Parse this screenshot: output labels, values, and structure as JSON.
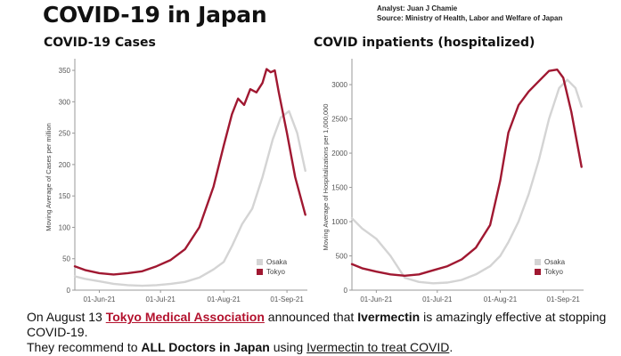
{
  "header": {
    "title": "COVID-19 in Japan",
    "analyst": "Analyst: Juan J Chamie",
    "source": "Source: Ministry of Health, Labor and Welfare of Japan"
  },
  "colors": {
    "osaka": "#d4d4d4",
    "tokyo": "#a01831"
  },
  "caption": {
    "line1_prefix": "On August 13 ",
    "line1_org": "Tokyo Medical Association",
    "line1_mid": " announced that ",
    "line1_drug": "Ivermectin",
    "line1_suffix": " is amazingly effective at stopping COVID-19.",
    "line2_prefix": "They recommend to ",
    "line2_bold": "ALL Doctors in Japan",
    "line2_mid": " using ",
    "line2_link": "Ivermectin to treat COVID",
    "line2_suffix": "."
  },
  "chart_data": [
    {
      "type": "line",
      "title": "COVID-19 Cases",
      "xlabel": "",
      "ylabel": "Moving Average of Cases per million",
      "x_ticks": [
        "01-Jun-21",
        "01-Jul-21",
        "01-Aug-21",
        "01-Sep-21"
      ],
      "y_ticks": [
        0,
        50,
        100,
        150,
        200,
        250,
        300,
        350
      ],
      "ylim": [
        0,
        360
      ],
      "legend": "bottom-right",
      "series": [
        {
          "name": "Osaka",
          "x": [
            "2021-05-20",
            "2021-05-25",
            "2021-06-01",
            "2021-06-08",
            "2021-06-15",
            "2021-06-22",
            "2021-06-29",
            "2021-07-06",
            "2021-07-13",
            "2021-07-20",
            "2021-07-27",
            "2021-08-01",
            "2021-08-05",
            "2021-08-10",
            "2021-08-15",
            "2021-08-20",
            "2021-08-25",
            "2021-08-29",
            "2021-09-02",
            "2021-09-06",
            "2021-09-10"
          ],
          "values": [
            22,
            18,
            14,
            10,
            8,
            7,
            8,
            10,
            13,
            20,
            33,
            45,
            70,
            105,
            130,
            180,
            240,
            275,
            285,
            250,
            190
          ]
        },
        {
          "name": "Tokyo",
          "x": [
            "2021-05-20",
            "2021-05-25",
            "2021-06-01",
            "2021-06-08",
            "2021-06-15",
            "2021-06-22",
            "2021-06-29",
            "2021-07-06",
            "2021-07-13",
            "2021-07-20",
            "2021-07-27",
            "2021-08-01",
            "2021-08-05",
            "2021-08-08",
            "2021-08-11",
            "2021-08-14",
            "2021-08-17",
            "2021-08-20",
            "2021-08-22",
            "2021-08-24",
            "2021-08-26",
            "2021-08-28",
            "2021-09-01",
            "2021-09-05",
            "2021-09-10"
          ],
          "values": [
            38,
            32,
            27,
            25,
            27,
            30,
            38,
            48,
            65,
            100,
            165,
            230,
            280,
            305,
            295,
            320,
            315,
            330,
            352,
            347,
            350,
            315,
            250,
            180,
            120
          ]
        }
      ]
    },
    {
      "type": "line",
      "title": "COVID inpatients (hospitalized)",
      "xlabel": "",
      "ylabel": "Moving Average of Hospitalizations per 1,000,000",
      "x_ticks": [
        "01-Jun-21",
        "01-Jul-21",
        "01-Aug-21",
        "01-Sep-21"
      ],
      "y_ticks": [
        0,
        500,
        1000,
        1500,
        2000,
        2500,
        3000
      ],
      "ylim": [
        0,
        3300
      ],
      "legend": "bottom-right",
      "series": [
        {
          "name": "Osaka",
          "x": [
            "2021-05-20",
            "2021-05-25",
            "2021-06-01",
            "2021-06-08",
            "2021-06-15",
            "2021-06-22",
            "2021-06-29",
            "2021-07-06",
            "2021-07-13",
            "2021-07-20",
            "2021-07-27",
            "2021-08-01",
            "2021-08-05",
            "2021-08-10",
            "2021-08-15",
            "2021-08-20",
            "2021-08-25",
            "2021-08-30",
            "2021-09-03",
            "2021-09-07",
            "2021-09-10"
          ],
          "values": [
            1050,
            900,
            750,
            500,
            180,
            120,
            100,
            110,
            150,
            230,
            350,
            500,
            700,
            1000,
            1400,
            1900,
            2500,
            2950,
            3070,
            2950,
            2680
          ]
        },
        {
          "name": "Tokyo",
          "x": [
            "2021-05-20",
            "2021-05-25",
            "2021-06-01",
            "2021-06-08",
            "2021-06-15",
            "2021-06-22",
            "2021-06-29",
            "2021-07-06",
            "2021-07-13",
            "2021-07-20",
            "2021-07-27",
            "2021-08-01",
            "2021-08-05",
            "2021-08-10",
            "2021-08-15",
            "2021-08-20",
            "2021-08-25",
            "2021-08-29",
            "2021-09-01",
            "2021-09-05",
            "2021-09-10"
          ],
          "values": [
            380,
            320,
            270,
            230,
            210,
            230,
            290,
            350,
            450,
            620,
            950,
            1600,
            2300,
            2700,
            2900,
            3050,
            3200,
            3220,
            3100,
            2600,
            1800
          ]
        }
      ]
    }
  ]
}
